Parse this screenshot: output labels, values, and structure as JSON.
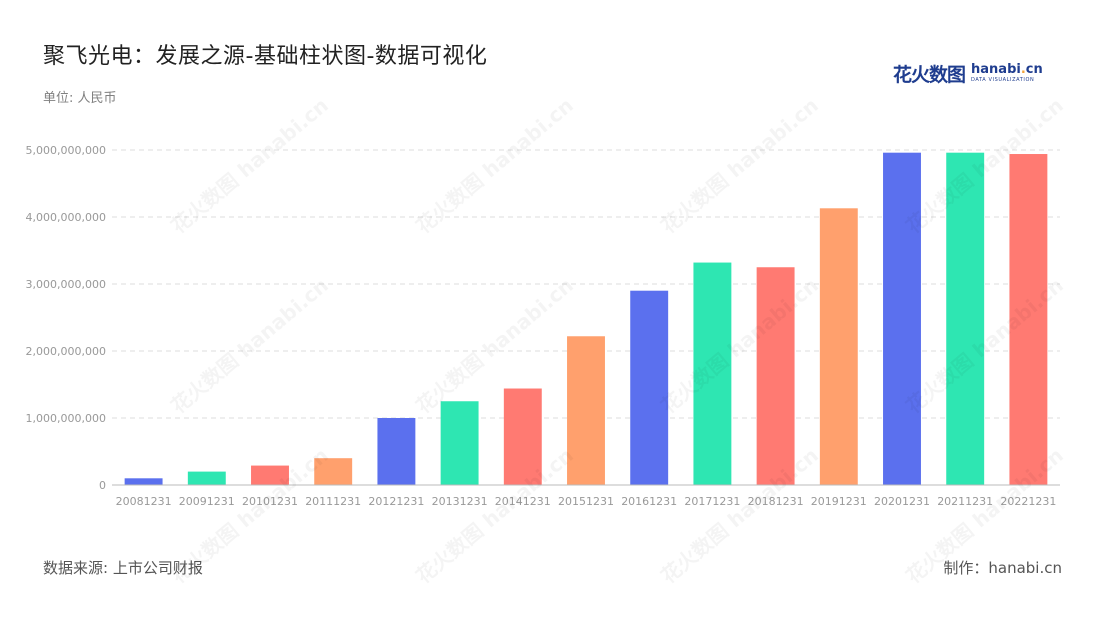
{
  "header": {
    "title": "聚飞光电：发展之源-基础柱状图-数据可视化",
    "unit_label": "单位: 人民币"
  },
  "logo": {
    "cn_text": "花火数图",
    "en_text_a": "hanabi",
    "en_text_dot": ".",
    "en_text_b": "cn",
    "tagline": "DATA VISUALIZATION"
  },
  "footer": {
    "source": "数据来源: 上市公司财报",
    "credit": "制作：hanabi.cn"
  },
  "colors": {
    "palette": [
      "#5b70ee",
      "#2ee6b2",
      "#ff7a72",
      "#ffa06d"
    ],
    "grid": "#dddddd",
    "axis_text": "#999999"
  },
  "chart_data": {
    "type": "bar",
    "categories": [
      "20081231",
      "20091231",
      "20101231",
      "20111231",
      "20121231",
      "20131231",
      "20141231",
      "20151231",
      "20161231",
      "20171231",
      "20181231",
      "20191231",
      "20201231",
      "20211231",
      "20221231"
    ],
    "values": [
      100000000,
      200000000,
      290000000,
      400000000,
      1000000000,
      1250000000,
      1440000000,
      2220000000,
      2900000000,
      3320000000,
      3250000000,
      4130000000,
      4960000000,
      4960000000,
      4940000000
    ],
    "ylim": [
      0,
      5000000000
    ],
    "yticks": [
      0,
      1000000000,
      2000000000,
      3000000000,
      4000000000,
      5000000000
    ],
    "ytick_labels": [
      "0",
      "1,000,000,000",
      "2,000,000,000",
      "3,000,000,000",
      "4,000,000,000",
      "5,000,000,000"
    ],
    "grid": true,
    "grid_style": "dashed",
    "color_cycle": "palette"
  },
  "watermark": "花火数图 hanabi.cn"
}
